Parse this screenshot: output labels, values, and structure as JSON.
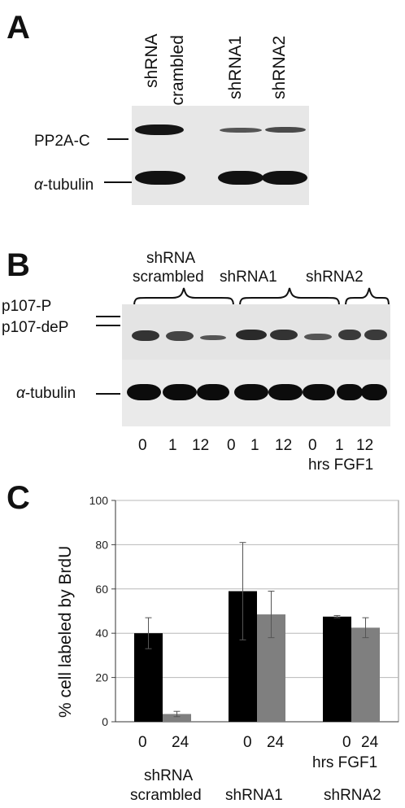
{
  "panelA": {
    "letter": "A",
    "lanes": [
      {
        "line1": "shRNA",
        "line2": "scrambled"
      },
      {
        "line1": "shRNA1"
      },
      {
        "line1": "shRNA2"
      }
    ],
    "row_labels": {
      "pp2a": "PP2A-C",
      "alpha_symbol": "α",
      "tubulin_suffix": "-tubulin"
    }
  },
  "panelB": {
    "letter": "B",
    "groups": [
      {
        "line1": "shRNA",
        "line2": "scrambled"
      },
      {
        "line1": "shRNA1"
      },
      {
        "line1": "shRNA2"
      }
    ],
    "row_labels": {
      "p107p": "p107-P",
      "p107dep": "p107-deP",
      "alpha_symbol": "α",
      "tubulin_suffix": "-tubulin"
    },
    "time_labels": [
      "0",
      "1",
      "12",
      "0",
      "1",
      "12",
      "0",
      "1",
      "12"
    ],
    "x_caption": "hrs FGF1"
  },
  "panelC": {
    "letter": "C",
    "chart_data": {
      "type": "bar",
      "ylabel": "% cell labeled by BrdU",
      "ylim": [
        0,
        100
      ],
      "yticks": [
        0,
        20,
        40,
        60,
        80,
        100
      ],
      "grid": true,
      "categories": [
        "shRNA scrambled",
        "shRNA1",
        "shRNA2"
      ],
      "time_labels": [
        "0",
        "24"
      ],
      "x_caption": "hrs FGF1",
      "series": [
        {
          "time": "0",
          "color": "#000000",
          "values": [
            40,
            59,
            47.5
          ],
          "errors": [
            7,
            22,
            0.5
          ]
        },
        {
          "time": "24",
          "color": "#7f7f7f",
          "values": [
            3.5,
            48.5,
            42.5
          ],
          "errors": [
            1.2,
            10.5,
            4.5
          ]
        }
      ]
    },
    "group_labels": [
      {
        "line1": "shRNA",
        "line2": "scrambled"
      },
      {
        "line1": "shRNA1"
      },
      {
        "line1": "shRNA2"
      }
    ]
  }
}
